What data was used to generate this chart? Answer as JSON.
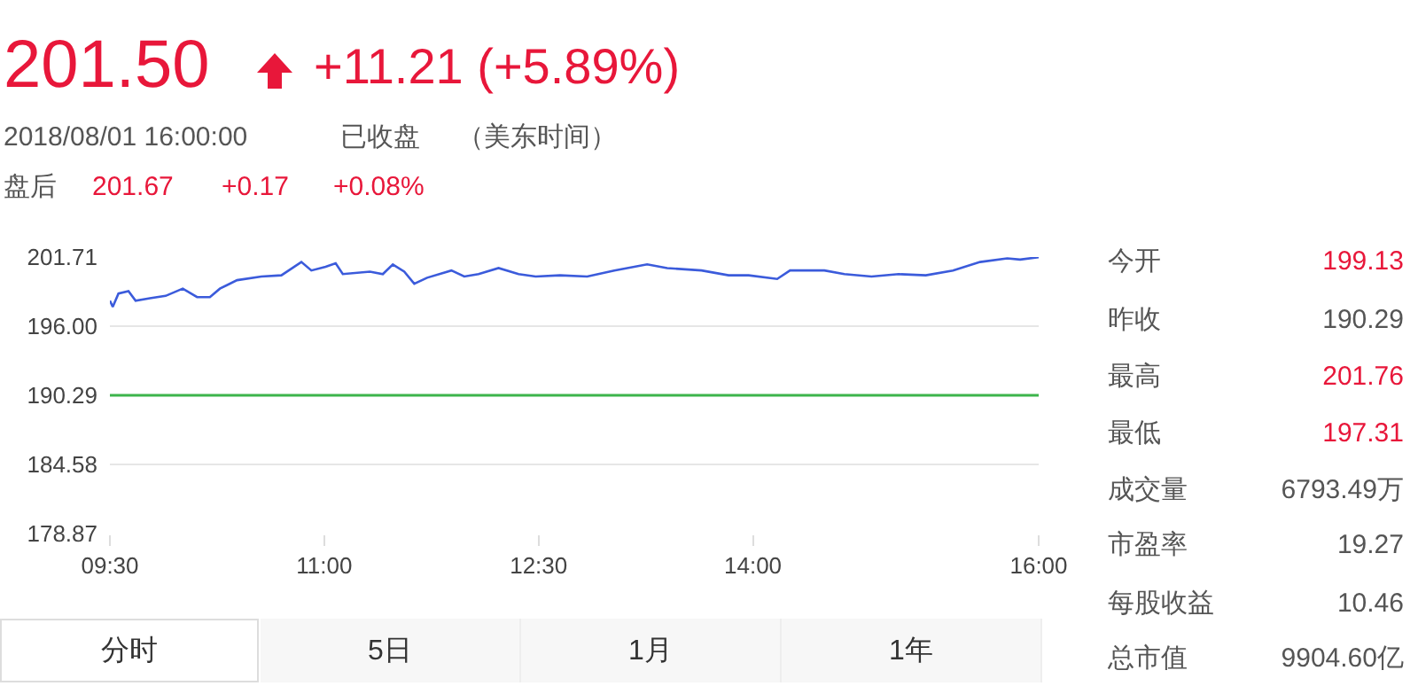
{
  "chart_data": {
    "type": "line",
    "x": [
      9.5,
      9.52,
      9.56,
      9.63,
      9.68,
      9.78,
      9.89,
      10.01,
      10.11,
      10.2,
      10.27,
      10.39,
      10.56,
      10.7,
      10.84,
      10.91,
      11.01,
      11.08,
      11.13,
      11.32,
      11.41,
      11.48,
      11.56,
      11.63,
      11.72,
      11.89,
      11.98,
      12.08,
      12.22,
      12.36,
      12.48,
      12.65,
      12.84,
      13.03,
      13.26,
      13.4,
      13.64,
      13.83,
      13.97,
      14.17,
      14.26,
      14.5,
      14.64,
      14.83,
      15.02,
      15.21,
      15.4,
      15.59,
      15.78,
      15.87,
      16.0
    ],
    "values": [
      198.1,
      197.6,
      198.7,
      198.9,
      198.1,
      198.3,
      198.5,
      199.1,
      198.4,
      198.4,
      199.1,
      199.8,
      200.1,
      200.2,
      201.3,
      200.6,
      200.9,
      201.2,
      200.3,
      200.5,
      200.3,
      201.1,
      200.5,
      199.5,
      200.0,
      200.6,
      200.1,
      200.3,
      200.8,
      200.3,
      200.1,
      200.2,
      200.1,
      200.6,
      201.1,
      200.8,
      200.6,
      200.2,
      200.2,
      199.9,
      200.6,
      200.6,
      200.3,
      200.1,
      200.3,
      200.2,
      200.6,
      201.3,
      201.6,
      201.5,
      201.7
    ],
    "color": "#3b5bdb",
    "xlim": [
      9.5,
      16
    ],
    "xticks": [
      {
        "value": 9.5,
        "label": "09:30"
      },
      {
        "value": 11,
        "label": "11:00"
      },
      {
        "value": 12.5,
        "label": "12:30"
      },
      {
        "value": 14,
        "label": "14:00"
      },
      {
        "value": 16,
        "label": "16:00"
      }
    ],
    "ylim": [
      178.87,
      201.71
    ],
    "yticks": [
      178.87,
      184.58,
      190.29,
      {
        "value": 196,
        "label": "196.00"
      },
      201.71
    ],
    "grid": "y",
    "ref_lines": [
      {
        "axis": "y",
        "value": 190.29,
        "color": "#3cb44b"
      }
    ],
    "annotations": [
      "201.50",
      "+11.21 (+5.89%)",
      "2018/08/01 16:00:00",
      "已收盘",
      "（美东时间）",
      "盘后",
      "201.67",
      "+0.17",
      "+0.08%",
      "今开",
      "199.13",
      "昨收",
      "190.29",
      "最高",
      "201.76",
      "最低",
      "197.31",
      "成交量",
      "6793.49万",
      "市盈率",
      "19.27",
      "每股收益",
      "10.46",
      "总市值",
      "9904.60亿",
      "分时",
      "5日",
      "1月",
      "1年"
    ]
  }
}
